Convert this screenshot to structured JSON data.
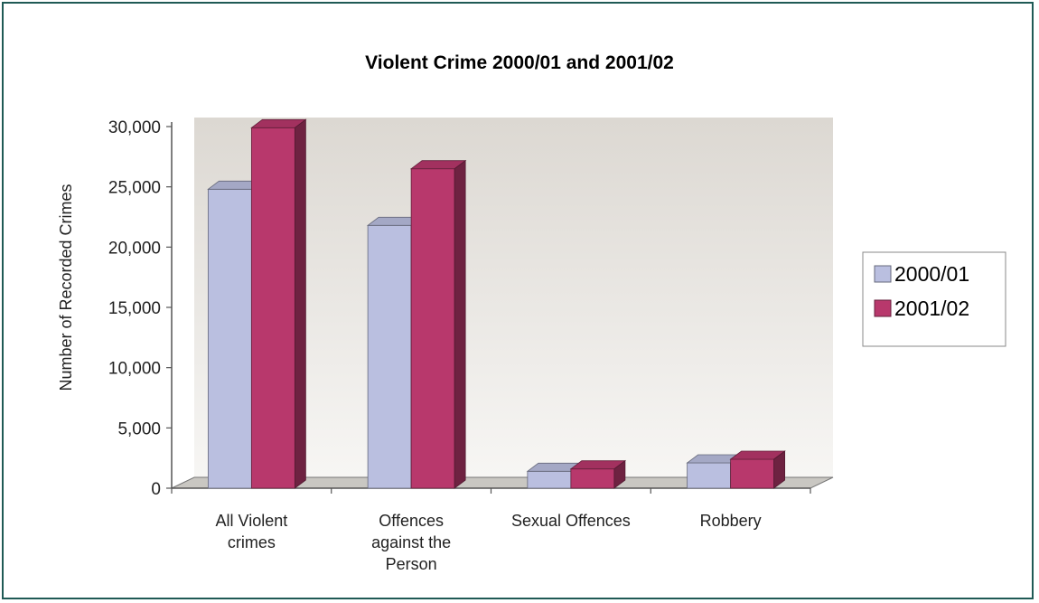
{
  "chart_data": {
    "type": "bar",
    "title": "Violent Crime 2000/01 and 2001/02",
    "ylabel": "Number of Recorded Crimes",
    "xlabel": "",
    "categories": [
      [
        "All Violent",
        "crimes"
      ],
      [
        "Offences",
        "against the",
        "Person"
      ],
      [
        "Sexual Offences"
      ],
      [
        "Robbery"
      ]
    ],
    "series": [
      {
        "name": "2000/01",
        "values": [
          24800,
          21800,
          1400,
          2100
        ],
        "color": "#babfe0"
      },
      {
        "name": "2001/02",
        "values": [
          29900,
          26500,
          1600,
          2400
        ],
        "color": "#b8386c"
      }
    ],
    "yticks": [
      "0",
      "5,000",
      "10,000",
      "15,000",
      "20,000",
      "25,000",
      "30,000"
    ],
    "ylim": [
      0,
      30000
    ],
    "legend": "right",
    "style": "3d"
  }
}
